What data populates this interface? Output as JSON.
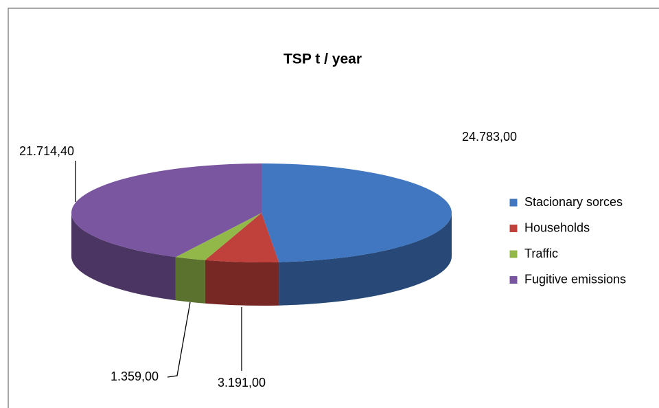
{
  "chart_data": {
    "type": "pie3d",
    "title": "TSP t / year",
    "categories": [
      "Stacionary sorces",
      "Households",
      "Traffic",
      "Fugitive emissions"
    ],
    "values": [
      24783,
      3191,
      1359,
      21714.4
    ],
    "value_labels": [
      "24.783,00",
      "3.191,00",
      "1.359,00",
      "21.714,40"
    ],
    "colors": [
      "#4177c0",
      "#c0413c",
      "#92b84a",
      "#7a56a0"
    ],
    "legend": "right"
  }
}
